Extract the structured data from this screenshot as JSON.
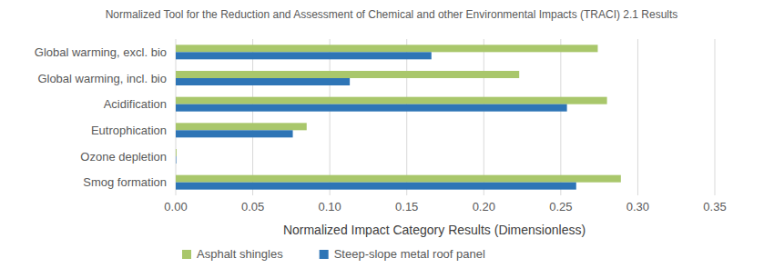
{
  "chart_data": {
    "type": "bar",
    "orientation": "horizontal",
    "title": "Normalized Tool for the Reduction and Assessment of Chemical and other Environmental Impacts (TRACI) 2.1 Results",
    "x_label": "Normalized Impact Category Results (Dimensionless)",
    "categories": [
      "Global warming, excl. bio",
      "Global warming, incl. bio",
      "Acidification",
      "Eutrophication",
      "Ozone depletion",
      "Smog formation"
    ],
    "series": [
      {
        "name": "Asphalt shingles",
        "color": "#a9c76b",
        "values": [
          0.274,
          0.223,
          0.28,
          0.085,
          0.0005,
          0.289
        ]
      },
      {
        "name": "Steep-slope metal roof panel",
        "color": "#2e75b6",
        "values": [
          0.166,
          0.113,
          0.254,
          0.076,
          0.0003,
          0.26
        ]
      }
    ],
    "xlim": [
      0,
      0.35
    ],
    "xticks": [
      {
        "value": 0,
        "label": "0.00"
      },
      {
        "value": 0.05,
        "label": "0.05"
      },
      {
        "value": 0.1,
        "label": "0.10"
      },
      {
        "value": 0.15,
        "label": "0.15"
      },
      {
        "value": 0.2,
        "label": "0.20"
      },
      {
        "value": 0.25,
        "label": "0.25"
      },
      {
        "value": 0.3,
        "label": "0.30"
      },
      {
        "value": 0.35,
        "label": "0.35"
      }
    ],
    "grid": true,
    "legend": "bottom"
  }
}
